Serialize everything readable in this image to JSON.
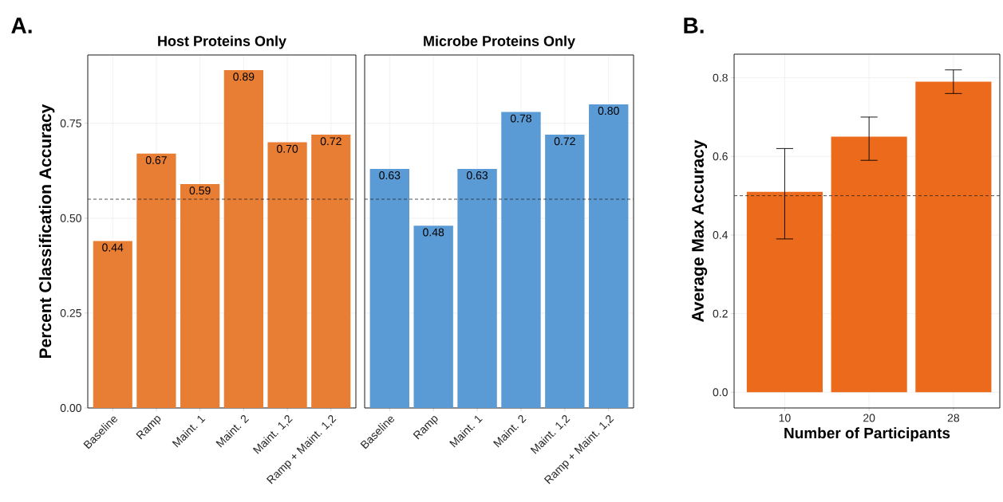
{
  "chart_data": [
    {
      "type": "bar",
      "title": "Host Proteins Only",
      "ylabel": "Percent Classification Accuracy",
      "annotations": [
        "A."
      ],
      "categories": [
        "Baseline",
        "Ramp",
        "Maint. 1",
        "Maint. 2",
        "Maint. 1,2",
        "Ramp + Maint. 1,2"
      ],
      "values": [
        0.44,
        0.67,
        0.59,
        0.89,
        0.7,
        0.72
      ],
      "color": "#e87d34",
      "value_labels": [
        "0.44",
        "0.67",
        "0.59",
        "0.89",
        "0.70",
        "0.72"
      ],
      "ylim": [
        0,
        0.93
      ],
      "yticks": [
        {
          "value": 0,
          "label": "0.00"
        },
        {
          "value": 0.25,
          "label": "0.25"
        },
        {
          "value": 0.5,
          "label": "0.50"
        },
        {
          "value": 0.75,
          "label": "0.75"
        }
      ],
      "ref_lines": [
        {
          "axis": "y",
          "value": 0.55,
          "line_style": "dashed"
        }
      ],
      "grid": true
    },
    {
      "type": "bar",
      "title": "Microbe Proteins Only",
      "categories": [
        "Baseline",
        "Ramp",
        "Maint. 1",
        "Maint. 2",
        "Maint. 1,2",
        "Ramp + Maint. 1,2"
      ],
      "values": [
        0.63,
        0.48,
        0.63,
        0.78,
        0.72,
        0.8
      ],
      "color": "#5b9bd5",
      "value_labels": [
        "0.63",
        "0.48",
        "0.63",
        "0.78",
        "0.72",
        "0.80"
      ],
      "ylim": [
        0,
        0.93
      ],
      "yticks": [
        {
          "value": 0,
          "label": null
        },
        {
          "value": 0.25,
          "label": null
        },
        {
          "value": 0.5,
          "label": null
        },
        {
          "value": 0.75,
          "label": null
        }
      ],
      "tick_labels": "x",
      "ref_lines": [
        {
          "axis": "y",
          "value": 0.55,
          "line_style": "dashed"
        }
      ],
      "grid": true
    },
    {
      "type": "bar",
      "xlabel": "Number of Participants",
      "ylabel": "Average Max Accuracy",
      "annotations": [
        "B."
      ],
      "categories": [
        "10",
        "20",
        "28"
      ],
      "values": [
        0.51,
        0.65,
        0.79
      ],
      "color": "#ec6a1c",
      "errors": [
        [
          0.39,
          0.62
        ],
        [
          0.59,
          0.7
        ],
        [
          0.76,
          0.82
        ]
      ],
      "ylim": [
        -0.04,
        0.86
      ],
      "yticks": [
        {
          "value": 0,
          "label": "0.0"
        },
        {
          "value": 0.2,
          "label": "0.2"
        },
        {
          "value": 0.4,
          "label": "0.4"
        },
        {
          "value": 0.6,
          "label": "0.6"
        },
        {
          "value": 0.8,
          "label": "0.8"
        }
      ],
      "ref_lines": [
        {
          "axis": "y",
          "value": 0.5,
          "line_style": "dashed"
        }
      ],
      "grid": true
    }
  ]
}
